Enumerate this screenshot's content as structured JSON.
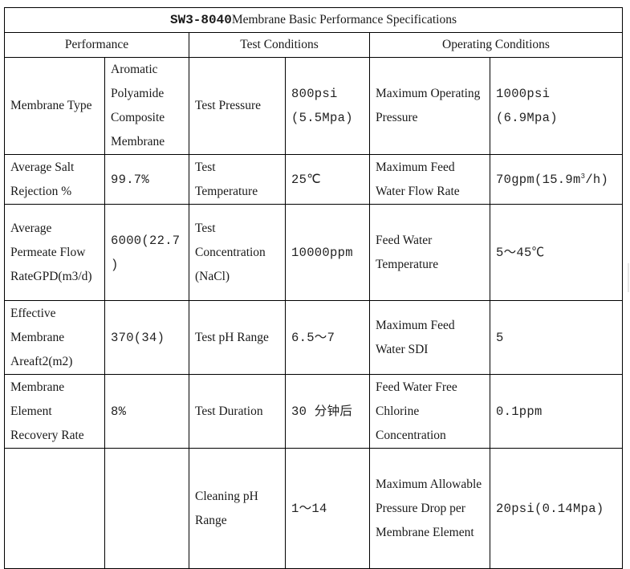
{
  "title": {
    "model": "SW3-8040",
    "text": "Membrane Basic Performance Specifications"
  },
  "headers": {
    "performance": "Performance",
    "test": "Test Conditions",
    "operating": "Operating Conditions"
  },
  "rows": [
    {
      "p_label": "Membrane Type",
      "p_value": "Aromatic Polyamide Composite Membrane",
      "t_label": "Test Pressure",
      "t_value": "800psi (5.5Mpa)",
      "o_label": "Maximum Operating Pressure",
      "o_value": "1000psi (6.9Mpa)"
    },
    {
      "p_label": "Average Salt Rejection %",
      "p_value": "99.7%",
      "t_label": "Test Temperature",
      "t_value": "25℃",
      "o_label": "Maximum Feed Water Flow Rate",
      "o_value_main": "70gpm(15.9m",
      "o_value_sup": "3",
      "o_value_end": "/h)"
    },
    {
      "p_label": "Average Permeate Flow RateGPD(m3/d)",
      "p_value": "6000(22.7)",
      "t_label": "Test Concentration (NaCl)",
      "t_value": "10000ppm",
      "o_label": "Feed Water Temperature",
      "o_value": "5～45℃"
    },
    {
      "p_label": "Effective Membrane Areaft2(m2)",
      "p_value": "370(34)",
      "t_label": "Test pH Range",
      "t_value": "6.5～7",
      "o_label": "Maximum Feed Water SDI",
      "o_value": "5"
    },
    {
      "p_label": "Membrane Element Recovery Rate",
      "p_value": "8%",
      "t_label": "Test Duration",
      "t_value": "30 分钟后",
      "o_label": "Feed Water Free Chlorine Concentration",
      "o_value": "0.1ppm"
    },
    {
      "p_label": "",
      "p_value": "",
      "t_label": "Cleaning pH Range",
      "t_value": "1～14",
      "o_label": "Maximum Allowable Pressure Drop per Membrane Element",
      "o_value": "20psi(0.14Mpa)"
    }
  ]
}
